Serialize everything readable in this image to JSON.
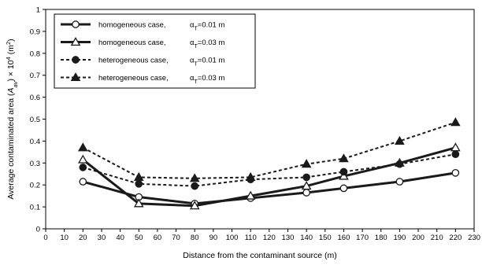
{
  "chart_data": {
    "type": "line",
    "xlabel": "Distance from the contaminant source (m)",
    "ylabel": "Average contaminated area (A_av) × 10⁴ (m²)",
    "xlim": [
      0,
      230
    ],
    "ylim": [
      0,
      1
    ],
    "xticks": [
      "0",
      "10",
      "20",
      "30",
      "40",
      "50",
      "60",
      "70",
      "80",
      "90",
      "100",
      "110",
      "120",
      "130",
      "140",
      "150",
      "160",
      "170",
      "180",
      "190",
      "200",
      "210",
      "220",
      "230"
    ],
    "yticks": [
      "0",
      "0.1",
      "0.2",
      "0.3",
      "0.4",
      "0.5",
      "0.6",
      "0.7",
      "0.8",
      "0.9",
      "1"
    ],
    "grid": false,
    "legend_position": "top-left",
    "series": [
      {
        "name": "homogeneous case,",
        "alpha": "αT=0.01 m",
        "marker": "open-circle",
        "style": "solid",
        "color": "#1a1a1a",
        "x": [
          20,
          50,
          80,
          110,
          140,
          160,
          190,
          220
        ],
        "y": [
          0.215,
          0.145,
          0.115,
          0.14,
          0.165,
          0.185,
          0.215,
          0.255
        ]
      },
      {
        "name": "homogeneous case,",
        "alpha": "αT=0.03 m",
        "marker": "open-triangle",
        "style": "solid",
        "color": "#1a1a1a",
        "x": [
          20,
          50,
          80,
          110,
          140,
          160,
          190,
          220
        ],
        "y": [
          0.315,
          0.115,
          0.105,
          0.15,
          0.195,
          0.24,
          0.3,
          0.37
        ]
      },
      {
        "name": "heterogeneous case,",
        "alpha": "αT=0.01 m",
        "marker": "filled-circle",
        "style": "dashed",
        "color": "#1a1a1a",
        "x": [
          20,
          50,
          80,
          110,
          140,
          160,
          190,
          220
        ],
        "y": [
          0.28,
          0.205,
          0.195,
          0.225,
          0.235,
          0.26,
          0.295,
          0.34
        ]
      },
      {
        "name": "heterogeneous case,",
        "alpha": "αT=0.03 m",
        "marker": "filled-triangle",
        "style": "dashed",
        "color": "#1a1a1a",
        "x": [
          20,
          50,
          80,
          110,
          140,
          160,
          190,
          220
        ],
        "y": [
          0.37,
          0.235,
          0.23,
          0.235,
          0.295,
          0.32,
          0.4,
          0.485
        ]
      }
    ]
  }
}
